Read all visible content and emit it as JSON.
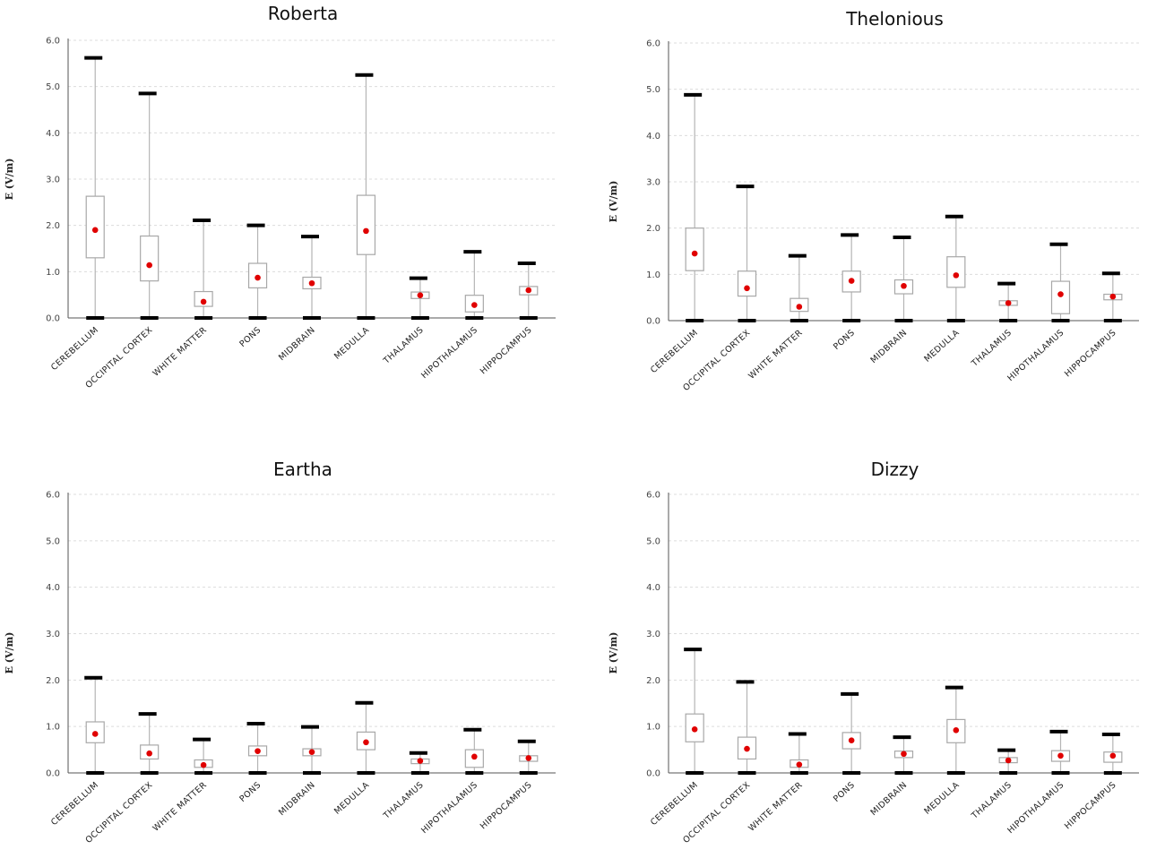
{
  "y_axis_label": "E (V/m)",
  "chart_data": [
    {
      "type": "box",
      "title": "Roberta",
      "ylabel": "E (V/m)",
      "ylim": [
        0,
        6
      ],
      "yticks": [
        "0.0",
        "1.0",
        "2.0",
        "3.0",
        "4.0",
        "5.0",
        "6.0"
      ],
      "categories": [
        "CEREBELLUM",
        "OCCIPITAL CORTEX",
        "WHITE MATTER",
        "PONS",
        "MIDBRAIN",
        "MEDULLA",
        "THALAMUS",
        "HIPOTHALAMUS",
        "HIPPOCAMPUS"
      ],
      "min": [
        0,
        0,
        0,
        0,
        0,
        0,
        0,
        0,
        0
      ],
      "q1": [
        1.3,
        0.8,
        0.25,
        0.65,
        0.63,
        1.37,
        0.42,
        0.13,
        0.5
      ],
      "q3": [
        2.63,
        1.77,
        0.57,
        1.18,
        0.88,
        2.65,
        0.56,
        0.49,
        0.68
      ],
      "max": [
        5.62,
        4.85,
        2.11,
        2.0,
        1.76,
        5.25,
        0.86,
        1.43,
        1.18
      ],
      "mean": [
        1.9,
        1.14,
        0.35,
        0.87,
        0.75,
        1.88,
        0.49,
        0.28,
        0.6
      ]
    },
    {
      "type": "box",
      "title": "Thelonious",
      "ylabel": "E (V/m)",
      "ylim": [
        0,
        6
      ],
      "yticks": [
        "0.0",
        "1.0",
        "2.0",
        "3.0",
        "4.0",
        "5.0",
        "6.0"
      ],
      "categories": [
        "CEREBELLUM",
        "OCCIPITAL CORTEX",
        "WHITE MATTER",
        "PONS",
        "MIDBRAIN",
        "MEDULLA",
        "THALAMUS",
        "HIPOTHALAMUS",
        "HIPPOCAMPUS"
      ],
      "min": [
        0,
        0,
        0,
        0,
        0,
        0,
        0,
        0,
        0
      ],
      "q1": [
        1.08,
        0.53,
        0.2,
        0.62,
        0.58,
        0.72,
        0.33,
        0.15,
        0.45
      ],
      "q3": [
        2.0,
        1.07,
        0.48,
        1.07,
        0.88,
        1.38,
        0.43,
        0.85,
        0.57
      ],
      "max": [
        4.88,
        2.9,
        1.4,
        1.85,
        1.8,
        2.25,
        0.8,
        1.65,
        1.02
      ],
      "mean": [
        1.45,
        0.7,
        0.3,
        0.86,
        0.75,
        0.98,
        0.38,
        0.57,
        0.52
      ]
    },
    {
      "type": "box",
      "title": "Eartha",
      "ylabel": "E (V/m)",
      "ylim": [
        0,
        6
      ],
      "yticks": [
        "0.0",
        "1.0",
        "2.0",
        "3.0",
        "4.0",
        "5.0",
        "6.0"
      ],
      "categories": [
        "CEREBELLUM",
        "OCCIPITAL CORTEX",
        "WHITE MATTER",
        "PONS",
        "MIDBRAIN",
        "MEDULLA",
        "THALAMUS",
        "HIPOTHALAMUS",
        "HIPPOCAMPUS"
      ],
      "min": [
        0,
        0,
        0,
        0,
        0,
        0,
        0,
        0,
        0
      ],
      "q1": [
        0.65,
        0.3,
        0.12,
        0.37,
        0.37,
        0.5,
        0.2,
        0.12,
        0.25
      ],
      "q3": [
        1.1,
        0.6,
        0.28,
        0.58,
        0.52,
        0.88,
        0.3,
        0.5,
        0.37
      ],
      "max": [
        2.05,
        1.27,
        0.72,
        1.06,
        0.99,
        1.51,
        0.43,
        0.93,
        0.68
      ],
      "mean": [
        0.84,
        0.42,
        0.17,
        0.47,
        0.45,
        0.66,
        0.26,
        0.35,
        0.32
      ]
    },
    {
      "type": "box",
      "title": "Dizzy",
      "ylabel": "E (V/m)",
      "ylim": [
        0,
        6
      ],
      "yticks": [
        "0.0",
        "1.0",
        "2.0",
        "3.0",
        "4.0",
        "5.0",
        "6.0"
      ],
      "categories": [
        "CEREBELLUM",
        "OCCIPITAL CORTEX",
        "WHITE MATTER",
        "PONS",
        "MIDBRAIN",
        "MEDULLA",
        "THALAMUS",
        "HIPOTHALAMUS",
        "HIPPOCAMPUS"
      ],
      "min": [
        0,
        0,
        0,
        0,
        0,
        0,
        0,
        0,
        0
      ],
      "q1": [
        0.67,
        0.3,
        0.12,
        0.52,
        0.33,
        0.65,
        0.22,
        0.25,
        0.23
      ],
      "q3": [
        1.27,
        0.77,
        0.28,
        0.87,
        0.47,
        1.15,
        0.33,
        0.48,
        0.45
      ],
      "max": [
        2.66,
        1.96,
        0.84,
        1.7,
        0.77,
        1.84,
        0.49,
        0.89,
        0.83
      ],
      "mean": [
        0.94,
        0.52,
        0.18,
        0.7,
        0.41,
        0.92,
        0.27,
        0.37,
        0.37
      ]
    }
  ]
}
